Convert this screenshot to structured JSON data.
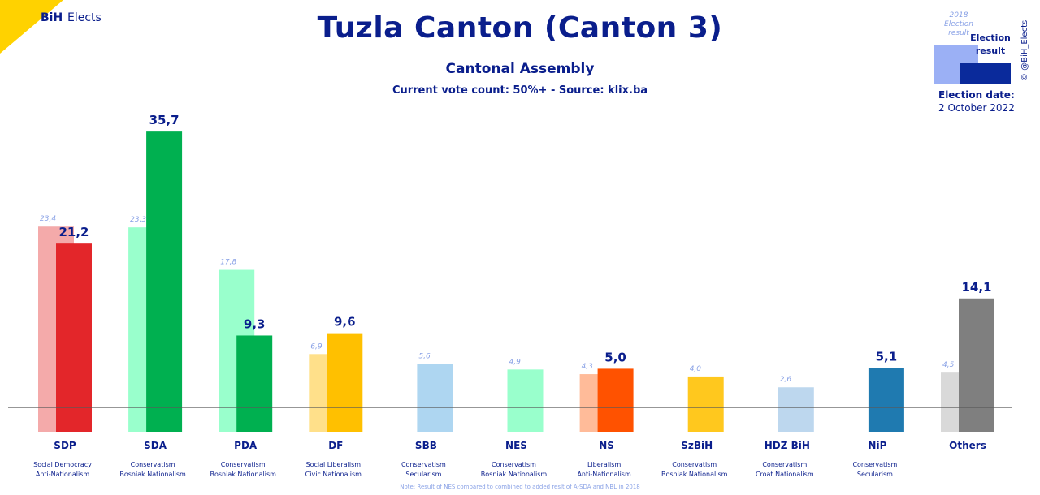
{
  "logo": {
    "bih": "BiH",
    "elects": "Elects"
  },
  "title": "Tuzla Canton (Canton 3)",
  "subtitle": "Cantonal Assembly",
  "source": "Current vote count: 50%+ - Source: klix.ba",
  "legend": {
    "prev_label": "2018 Election result",
    "cur_label": "Election result",
    "date_label": "Election date:",
    "date_value": "2 October 2022"
  },
  "credit": "© @BiH_Elects",
  "note": "Note: Result of NES compared to combined to added reslt of A-SDA and NBL in 2018",
  "chart_data": {
    "type": "bar",
    "categories": [
      "SDP",
      "SDA",
      "PDA",
      "DF",
      "SBB",
      "NES",
      "NS",
      "SzBiH",
      "HDZ BiH",
      "NiP",
      "Others"
    ],
    "series": [
      {
        "name": "2018 Election result",
        "values": [
          23.4,
          23.3,
          17.8,
          6.9,
          5.6,
          4.9,
          4.3,
          4.0,
          2.6,
          null,
          4.5
        ]
      },
      {
        "name": "Election result",
        "values": [
          21.2,
          35.7,
          9.3,
          9.6,
          null,
          null,
          5.0,
          null,
          null,
          5.1,
          14.1
        ]
      }
    ],
    "value_labels_current": [
      "21,2",
      "35,7",
      "9,3",
      "9,6",
      "",
      "",
      "5,0",
      "",
      "",
      "5,1",
      "14,1"
    ],
    "value_labels_previous": [
      "23,4",
      "23,3",
      "17,8",
      "6,9",
      "5,6",
      "4,9",
      "4,3",
      "4,0",
      "2,6",
      "",
      "4,5"
    ],
    "ideologies": [
      [
        "Social Democracy",
        "Anti-Nationalism"
      ],
      [
        "Conservatism",
        "Bosniak Nationalism"
      ],
      [
        "Conservatism",
        "Bosniak Nationalism"
      ],
      [
        "Social Liberalism",
        "Civic Nationalism"
      ],
      [
        "Conservatism",
        "Secularism"
      ],
      [
        "Conservatism",
        "Bosniak Nationalism"
      ],
      [
        "Liberalism",
        "Anti-Nationalism"
      ],
      [
        "Conservatism",
        "Bosniak Nationalism"
      ],
      [
        "Conservatism",
        "Croat Nationalism"
      ],
      [
        "Conservatism",
        "Secularism"
      ],
      [
        "",
        ""
      ]
    ],
    "colors_current": [
      "#e3262a",
      "#00b050",
      "#00b050",
      "#ffc000",
      "#aed6f1",
      "#99ffcc",
      "#ff5200",
      "#ffc81e",
      "#bdd7ee",
      "#1f7ab0",
      "#7f7f7f"
    ],
    "colors_previous": [
      "#f4aaaa",
      "#99ffcc",
      "#99ffcc",
      "#ffe08a",
      "#aed6f1",
      "#99ffcc",
      "#ffbb99",
      "#ffc81e",
      "#bdd7ee",
      "#1f7ab0",
      "#d9d9d9"
    ],
    "ylim": [
      -5,
      40
    ],
    "grid": false,
    "legend_position": "top-right"
  }
}
